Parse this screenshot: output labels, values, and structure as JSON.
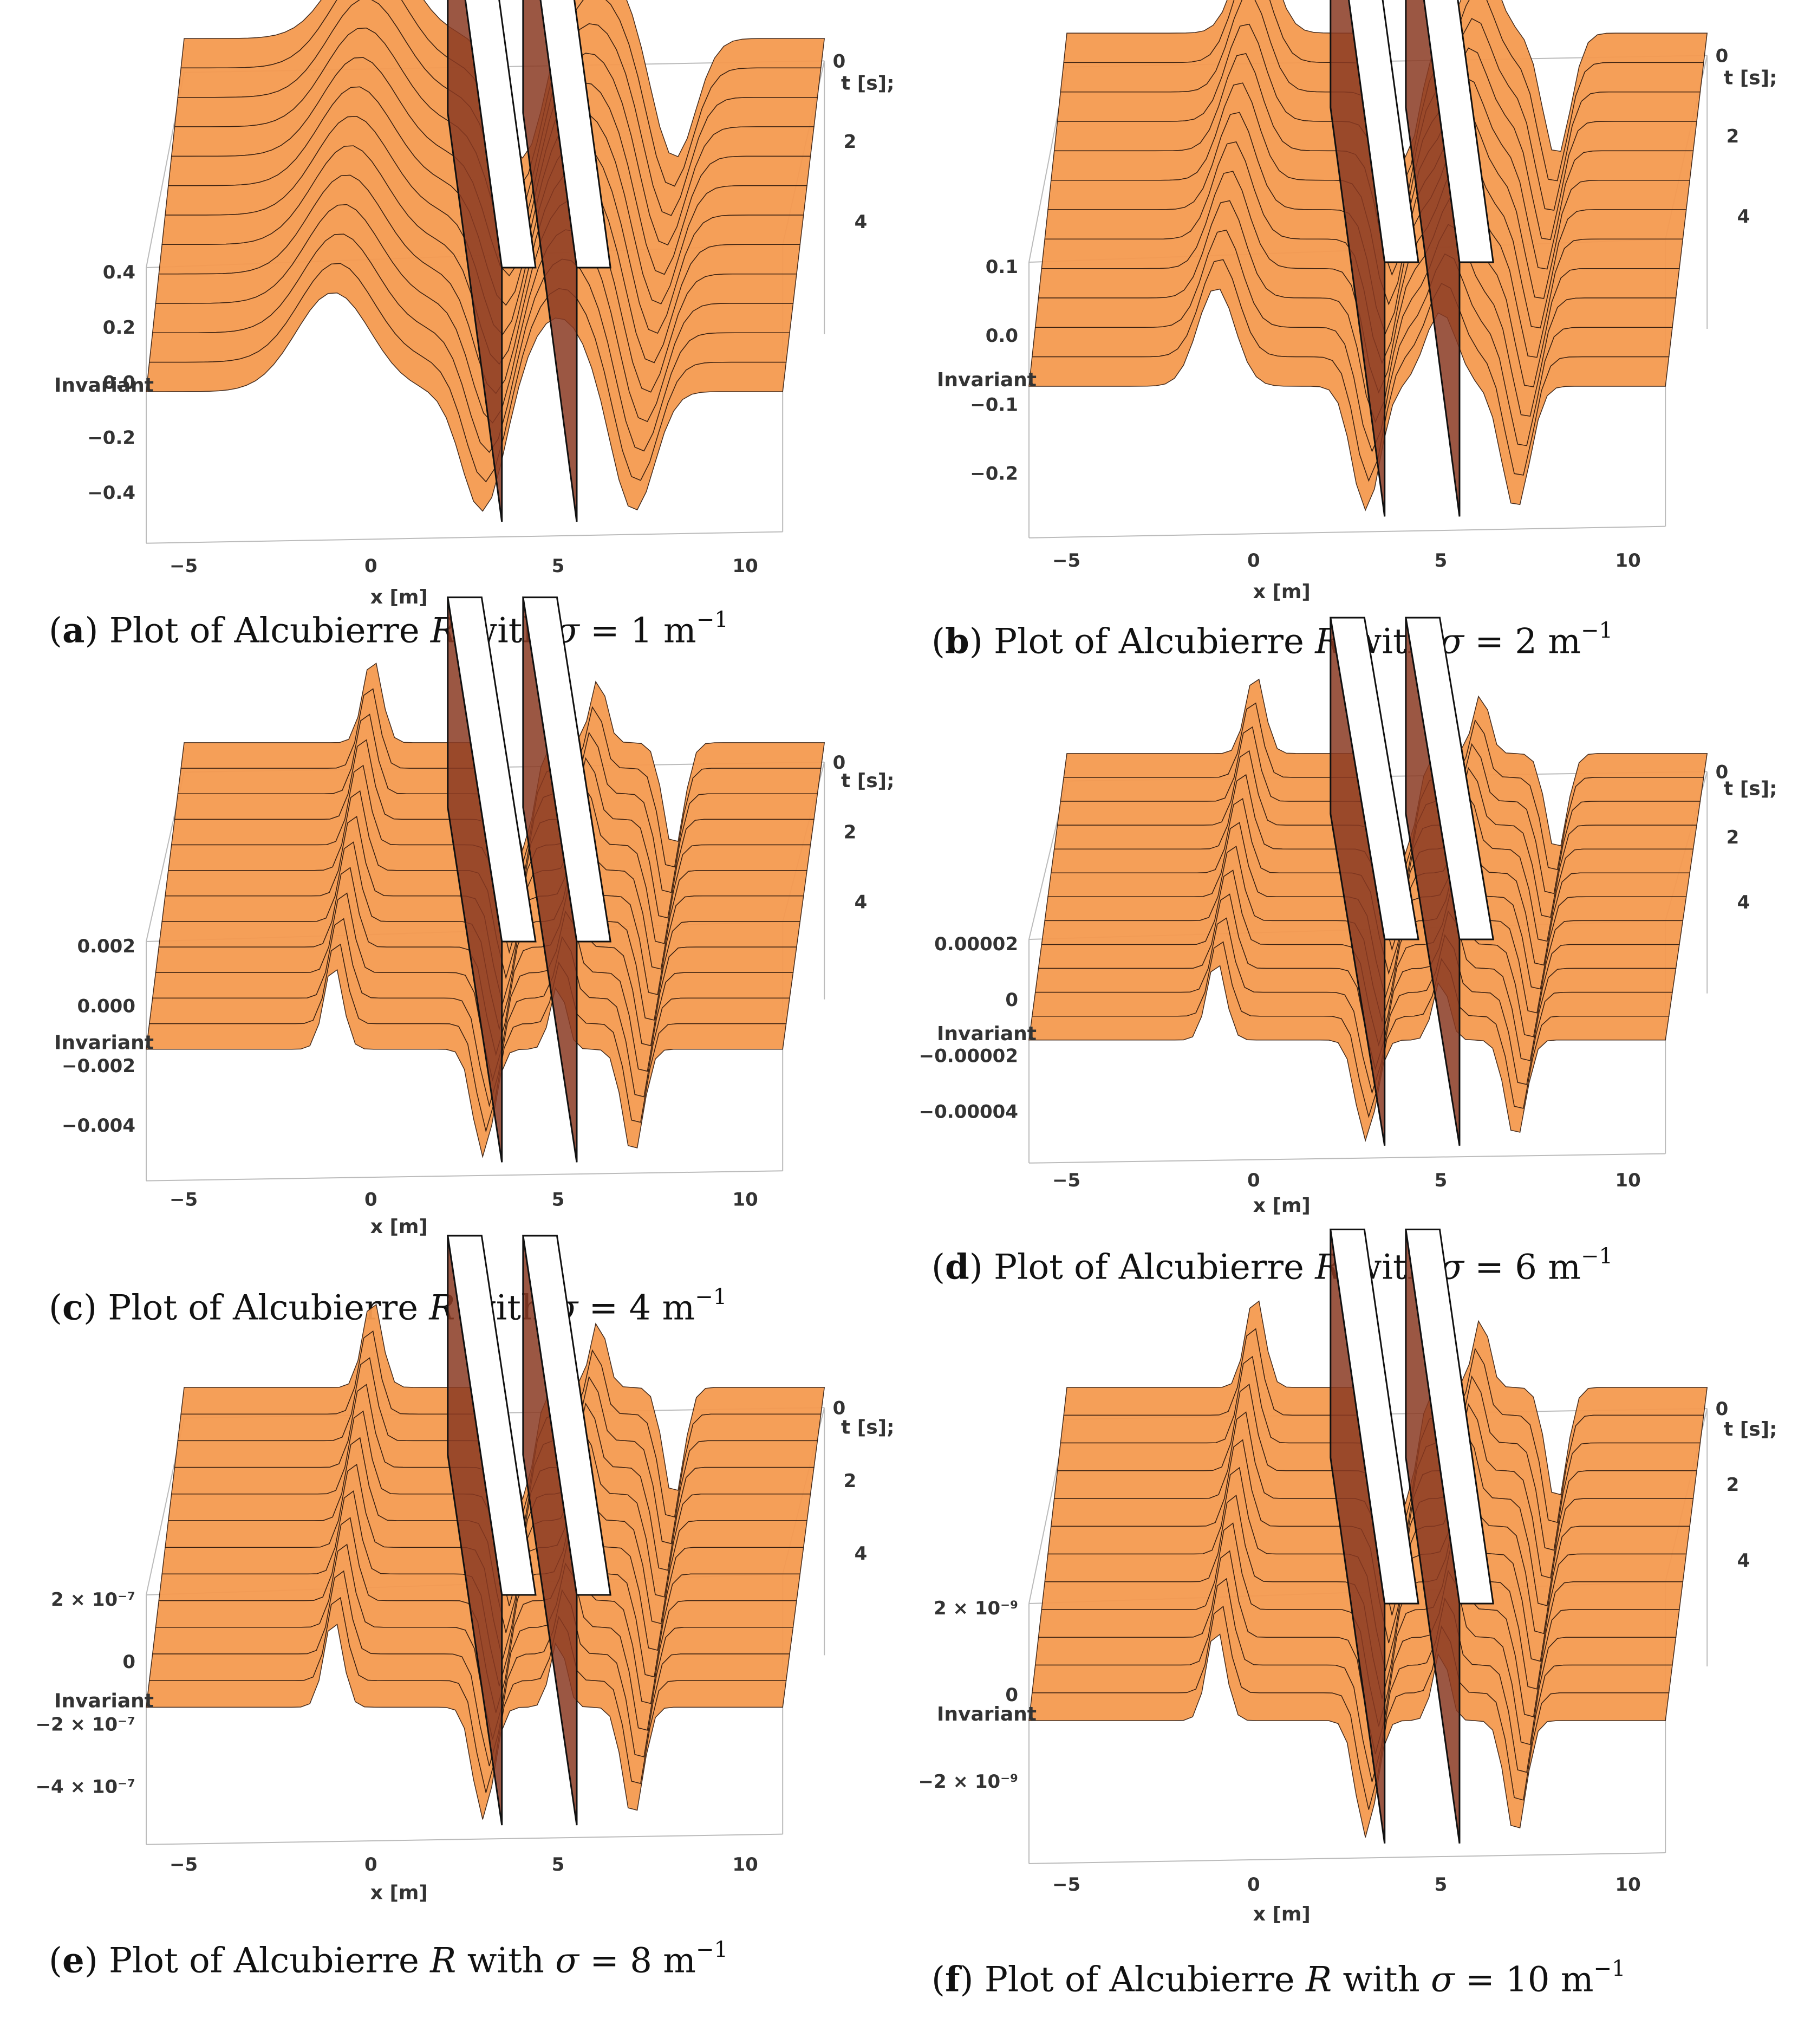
{
  "figure": {
    "panels": [
      {
        "id": "a",
        "caption": {
          "letter": "a",
          "prefix": "Plot of Alcubierre",
          "symbol": "R",
          "with_text": "with",
          "sigma_label": "σ",
          "value": "1",
          "unit": "m",
          "exponent": "−1"
        },
        "chart_data": {
          "type": "surface3d",
          "xlabel": "x [m]",
          "ylabel": "t [s];",
          "zlabel": "Invariant",
          "x_ticks": [
            "−5",
            "0",
            "5",
            "10"
          ],
          "t_ticks": [
            "0",
            "2",
            "4"
          ],
          "z_ticks": [
            "0.4",
            "0.2",
            "0.0",
            "−0.2",
            "−0.4"
          ],
          "xlim": [
            -6,
            11
          ],
          "tlim": [
            0,
            5
          ],
          "zlim": [
            -0.5,
            0.45
          ],
          "sigma": 1,
          "peak": 0.42,
          "trough": -0.46,
          "colors": {
            "surface": "#f59a50",
            "wall": "#8a3a22"
          }
        }
      },
      {
        "id": "b",
        "caption": {
          "letter": "b",
          "prefix": "Plot of Alcubierre",
          "symbol": "R",
          "with_text": "with",
          "sigma_label": "σ",
          "value": "2",
          "unit": "m",
          "exponent": "−1"
        },
        "chart_data": {
          "type": "surface3d",
          "xlabel": "x [m]",
          "ylabel": "t [s];",
          "zlabel": "Invariant",
          "x_ticks": [
            "−5",
            "0",
            "5",
            "10"
          ],
          "t_ticks": [
            "0",
            "2",
            "4"
          ],
          "z_ticks": [
            "0.1",
            "0.0",
            "−0.1",
            "−0.2"
          ],
          "xlim": [
            -6,
            11
          ],
          "tlim": [
            0,
            5
          ],
          "zlim": [
            -0.2,
            0.12
          ],
          "sigma": 2,
          "peak": 0.12,
          "trough": -0.19,
          "colors": {
            "surface": "#f59a50",
            "wall": "#8a3a22"
          }
        }
      },
      {
        "id": "c",
        "caption": {
          "letter": "c",
          "prefix": "Plot of Alcubierre",
          "symbol": "R",
          "with_text": "with",
          "sigma_label": "σ",
          "value": "4",
          "unit": "m",
          "exponent": "−1"
        },
        "chart_data": {
          "type": "surface3d",
          "xlabel": "x [m]",
          "ylabel": "t [s];",
          "zlabel": "Invariant",
          "x_ticks": [
            "−5",
            "0",
            "5",
            "10"
          ],
          "t_ticks": [
            "0",
            "2",
            "4"
          ],
          "z_ticks": [
            "0.002",
            "0.000",
            "−0.002",
            "−0.004"
          ],
          "xlim": [
            -6,
            11
          ],
          "tlim": [
            0,
            5
          ],
          "zlim": [
            -0.004,
            0.003
          ],
          "sigma": 4,
          "peak": 0.003,
          "trough": -0.0038,
          "colors": {
            "surface": "#f59a50",
            "wall": "#8a3a22"
          }
        }
      },
      {
        "id": "d",
        "caption": {
          "letter": "d",
          "prefix": "Plot of Alcubierre",
          "symbol": "R",
          "with_text": "with",
          "sigma_label": "σ",
          "value": "6",
          "unit": "m",
          "exponent": "−1"
        },
        "chart_data": {
          "type": "surface3d",
          "xlabel": "x [m]",
          "ylabel": "t [s];",
          "zlabel": "Invariant",
          "x_ticks": [
            "−5",
            "0",
            "5",
            "10"
          ],
          "t_ticks": [
            "0",
            "2",
            "4"
          ],
          "z_ticks": [
            "0.00002",
            "0",
            "−0.00002",
            "−0.00004"
          ],
          "xlim": [
            -6,
            11
          ],
          "tlim": [
            0,
            5
          ],
          "zlim": [
            -5e-05,
            3e-05
          ],
          "sigma": 6,
          "peak": 3e-05,
          "trough": -4.5e-05,
          "colors": {
            "surface": "#f59a50",
            "wall": "#8a3a22"
          }
        }
      },
      {
        "id": "e",
        "caption": {
          "letter": "e",
          "prefix": "Plot of Alcubierre",
          "symbol": "R",
          "with_text": "with",
          "sigma_label": "σ",
          "value": "8",
          "unit": "m",
          "exponent": "−1"
        },
        "chart_data": {
          "type": "surface3d",
          "xlabel": "x [m]",
          "ylabel": "t [s];",
          "zlabel": "Invariant",
          "x_ticks": [
            "−5",
            "0",
            "5",
            "10"
          ],
          "t_ticks": [
            "0",
            "2",
            "4"
          ],
          "z_ticks": [
            "2 × 10⁻⁷",
            "0",
            "−2 × 10⁻⁷",
            "−4 × 10⁻⁷"
          ],
          "xlim": [
            -6,
            11
          ],
          "tlim": [
            0,
            5
          ],
          "zlim": [
            -5e-07,
            3e-07
          ],
          "sigma": 8,
          "peak": 3e-07,
          "trough": -4.5e-07,
          "colors": {
            "surface": "#f59a50",
            "wall": "#8a3a22"
          }
        }
      },
      {
        "id": "f",
        "caption": {
          "letter": "f",
          "prefix": "Plot of Alcubierre",
          "symbol": "R",
          "with_text": "with",
          "sigma_label": "σ",
          "value": "10",
          "unit": "m",
          "exponent": "−1"
        },
        "chart_data": {
          "type": "surface3d",
          "xlabel": "x [m]",
          "ylabel": "t [s];",
          "zlabel": "Invariant",
          "x_ticks": [
            "−5",
            "0",
            "5",
            "10"
          ],
          "t_ticks": [
            "0",
            "2",
            "4"
          ],
          "z_ticks": [
            "2 × 10⁻⁹",
            "0",
            "−2 × 10⁻⁹"
          ],
          "xlim": [
            -6,
            11
          ],
          "tlim": [
            0,
            5
          ],
          "zlim": [
            -3e-09,
            3e-09
          ],
          "sigma": 10,
          "peak": 3e-09,
          "trough": -3e-09,
          "colors": {
            "surface": "#f59a50",
            "wall": "#8a3a22"
          }
        }
      }
    ]
  }
}
